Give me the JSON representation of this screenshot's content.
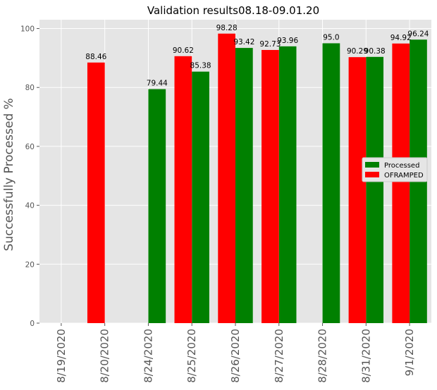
{
  "chart_data": {
    "type": "bar",
    "title": "Validation results08.18-09.01.20",
    "xlabel": "",
    "ylabel": "Successfully Processed %",
    "ylim": [
      0,
      103
    ],
    "yticks": [
      0,
      20,
      40,
      60,
      80,
      100
    ],
    "grid": true,
    "legend_position": "center-right",
    "categories": [
      "8/19/2020",
      "8/20/2020",
      "8/24/2020",
      "8/25/2020",
      "8/26/2020",
      "8/27/2020",
      "8/28/2020",
      "8/31/2020",
      "9/1/2020"
    ],
    "series": [
      {
        "name": "Processed",
        "color": "#008000",
        "values": [
          null,
          null,
          79.44,
          85.38,
          93.42,
          93.96,
          95.0,
          90.38,
          96.24
        ],
        "labels": [
          null,
          null,
          "79.44",
          "85.38",
          "93.42",
          "93.96",
          "95.0",
          "90.38",
          "96.24"
        ]
      },
      {
        "name": "OFRAMPED",
        "color": "#ff0000",
        "values": [
          null,
          88.46,
          null,
          90.62,
          98.28,
          92.73,
          null,
          90.29,
          94.92
        ],
        "labels": [
          null,
          "88.46",
          null,
          "90.62",
          "98.28",
          "92.73",
          null,
          "90.29",
          "94.92"
        ]
      }
    ]
  }
}
